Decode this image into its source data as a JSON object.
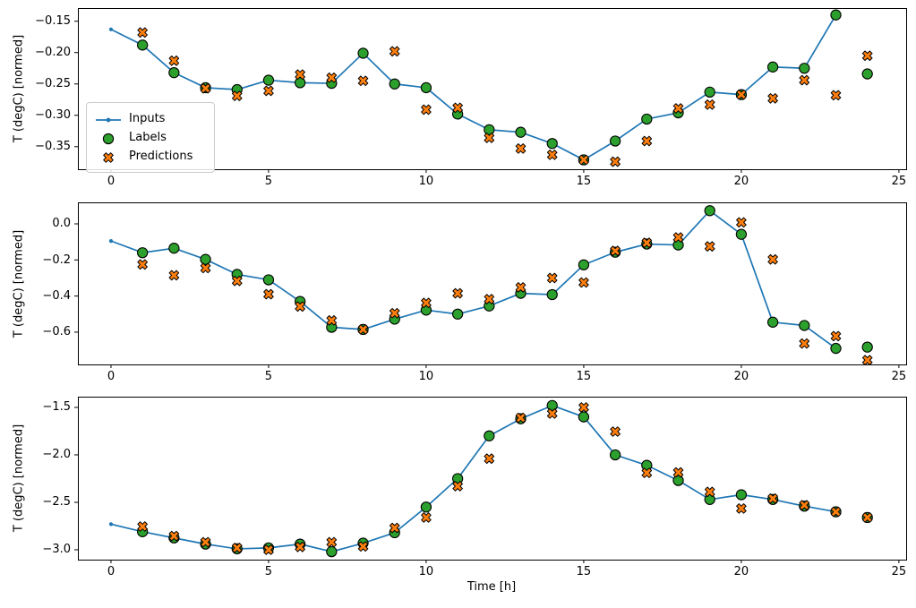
{
  "figure": {
    "xlabel": "Time [h]",
    "colors": {
      "inputs": "#1f77b4",
      "labels": "#2ca02c",
      "predictions": "#ff7f0e",
      "marker_edge": "#000000",
      "legend_border": "#cccccc"
    },
    "legend": {
      "items": [
        {
          "label": "Inputs",
          "marker": "line-dot"
        },
        {
          "label": "Labels",
          "marker": "circle"
        },
        {
          "label": "Predictions",
          "marker": "X"
        }
      ]
    }
  },
  "chart_data": [
    {
      "type": "line_scatter",
      "title": "",
      "ylabel": "T (degC) [normed]",
      "xlim": [
        -1.05,
        25.23
      ],
      "ylim": [
        -0.386,
        -0.129
      ],
      "grid": false,
      "xticks": {
        "values": [
          0,
          5,
          10,
          15,
          20,
          25
        ],
        "labels": [
          "0",
          "5",
          "10",
          "15",
          "20",
          "25"
        ]
      },
      "yticks": {
        "values": [
          -0.15,
          -0.2,
          -0.25,
          -0.3,
          -0.35
        ],
        "labels": [
          "−0.15",
          "−0.20",
          "−0.25",
          "−0.30",
          "−0.35"
        ]
      },
      "series": [
        {
          "name": "Inputs",
          "kind": "line",
          "marker": "dot",
          "color": "#1f77b4",
          "x": [
            0,
            1,
            2,
            3,
            4,
            5,
            6,
            7,
            8,
            9,
            10,
            11,
            12,
            13,
            14,
            15,
            16,
            17,
            18,
            19,
            20,
            21,
            22,
            23
          ],
          "y": [
            -0.163,
            -0.188,
            -0.232,
            -0.256,
            -0.259,
            -0.244,
            -0.248,
            -0.249,
            -0.201,
            -0.25,
            -0.256,
            -0.298,
            -0.323,
            -0.327,
            -0.345,
            -0.371,
            -0.341,
            -0.306,
            -0.296,
            -0.263,
            -0.267,
            -0.223,
            -0.225,
            -0.14
          ]
        },
        {
          "name": "Labels",
          "kind": "scatter",
          "marker": "circle",
          "color": "#2ca02c",
          "x": [
            1,
            2,
            3,
            4,
            5,
            6,
            7,
            8,
            9,
            10,
            11,
            12,
            13,
            14,
            15,
            16,
            17,
            18,
            19,
            20,
            21,
            22,
            23,
            24
          ],
          "y": [
            -0.188,
            -0.232,
            -0.256,
            -0.259,
            -0.244,
            -0.248,
            -0.249,
            -0.201,
            -0.25,
            -0.256,
            -0.298,
            -0.323,
            -0.327,
            -0.345,
            -0.371,
            -0.341,
            -0.306,
            -0.296,
            -0.263,
            -0.267,
            -0.223,
            -0.225,
            -0.14,
            -0.234
          ]
        },
        {
          "name": "Predictions",
          "kind": "scatter",
          "marker": "X",
          "color": "#ff7f0e",
          "x": [
            1,
            2,
            3,
            4,
            5,
            6,
            7,
            8,
            9,
            10,
            11,
            12,
            13,
            14,
            15,
            16,
            17,
            18,
            19,
            20,
            21,
            22,
            23,
            24
          ],
          "y": [
            -0.168,
            -0.213,
            -0.257,
            -0.269,
            -0.261,
            -0.235,
            -0.24,
            -0.245,
            -0.198,
            -0.291,
            -0.288,
            -0.336,
            -0.353,
            -0.363,
            -0.371,
            -0.374,
            -0.341,
            -0.289,
            -0.283,
            -0.267,
            -0.273,
            -0.244,
            -0.268,
            -0.205
          ]
        }
      ]
    },
    {
      "type": "line_scatter",
      "title": "",
      "ylabel": "T (degC) [normed]",
      "xlim": [
        -1.05,
        25.23
      ],
      "ylim": [
        -0.779,
        0.119
      ],
      "grid": false,
      "xticks": {
        "values": [
          0,
          5,
          10,
          15,
          20,
          25
        ],
        "labels": [
          "0",
          "5",
          "10",
          "15",
          "20",
          "25"
        ]
      },
      "yticks": {
        "values": [
          0.0,
          -0.2,
          -0.4,
          -0.6
        ],
        "labels": [
          "0.0",
          "−0.2",
          "−0.4",
          "−0.6"
        ]
      },
      "series": [
        {
          "name": "Inputs",
          "kind": "line",
          "marker": "dot",
          "color": "#1f77b4",
          "x": [
            0,
            1,
            2,
            3,
            4,
            5,
            6,
            7,
            8,
            9,
            10,
            11,
            12,
            13,
            14,
            15,
            16,
            17,
            18,
            19,
            20,
            21,
            22,
            23
          ],
          "y": [
            -0.095,
            -0.16,
            -0.135,
            -0.197,
            -0.28,
            -0.31,
            -0.43,
            -0.573,
            -0.585,
            -0.528,
            -0.478,
            -0.5,
            -0.455,
            -0.385,
            -0.392,
            -0.227,
            -0.157,
            -0.112,
            -0.117,
            0.073,
            -0.058,
            -0.545,
            -0.563,
            -0.69
          ]
        },
        {
          "name": "Labels",
          "kind": "scatter",
          "marker": "circle",
          "color": "#2ca02c",
          "x": [
            1,
            2,
            3,
            4,
            5,
            6,
            7,
            8,
            9,
            10,
            11,
            12,
            13,
            14,
            15,
            16,
            17,
            18,
            19,
            20,
            21,
            22,
            23,
            24
          ],
          "y": [
            -0.16,
            -0.135,
            -0.197,
            -0.28,
            -0.31,
            -0.43,
            -0.573,
            -0.585,
            -0.528,
            -0.478,
            -0.5,
            -0.455,
            -0.385,
            -0.392,
            -0.227,
            -0.157,
            -0.112,
            -0.117,
            0.073,
            -0.058,
            -0.545,
            -0.563,
            -0.69,
            -0.683
          ]
        },
        {
          "name": "Predictions",
          "kind": "scatter",
          "marker": "X",
          "color": "#ff7f0e",
          "x": [
            1,
            2,
            3,
            4,
            5,
            6,
            7,
            8,
            9,
            10,
            11,
            12,
            13,
            14,
            15,
            16,
            17,
            18,
            19,
            20,
            21,
            22,
            23,
            24
          ],
          "y": [
            -0.225,
            -0.285,
            -0.245,
            -0.316,
            -0.39,
            -0.458,
            -0.535,
            -0.585,
            -0.495,
            -0.438,
            -0.385,
            -0.417,
            -0.352,
            -0.3,
            -0.325,
            -0.15,
            -0.105,
            -0.075,
            -0.125,
            0.008,
            -0.197,
            -0.663,
            -0.622,
            -0.755
          ]
        }
      ]
    },
    {
      "type": "line_scatter",
      "title": "",
      "ylabel": "T (degC) [normed]",
      "xlabel": "Time [h]",
      "xlim": [
        -1.05,
        25.23
      ],
      "ylim": [
        -3.104,
        -1.387
      ],
      "grid": false,
      "xticks": {
        "values": [
          0,
          5,
          10,
          15,
          20,
          25
        ],
        "labels": [
          "0",
          "5",
          "10",
          "15",
          "20",
          "25"
        ]
      },
      "yticks": {
        "values": [
          -1.5,
          -2.0,
          -2.5,
          -3.0
        ],
        "labels": [
          "−1.5",
          "−2.0",
          "−2.5",
          "−3.0"
        ]
      },
      "series": [
        {
          "name": "Inputs",
          "kind": "line",
          "marker": "dot",
          "color": "#1f77b4",
          "x": [
            0,
            1,
            2,
            3,
            4,
            5,
            6,
            7,
            8,
            9,
            10,
            11,
            12,
            13,
            14,
            15,
            16,
            17,
            18,
            19,
            20,
            21,
            22,
            23
          ],
          "y": [
            -2.73,
            -2.81,
            -2.875,
            -2.94,
            -2.99,
            -2.98,
            -2.94,
            -3.02,
            -2.93,
            -2.82,
            -2.55,
            -2.25,
            -1.8,
            -1.62,
            -1.48,
            -1.6,
            -2.0,
            -2.11,
            -2.27,
            -2.47,
            -2.42,
            -2.47,
            -2.54,
            -2.6
          ]
        },
        {
          "name": "Labels",
          "kind": "scatter",
          "marker": "circle",
          "color": "#2ca02c",
          "x": [
            1,
            2,
            3,
            4,
            5,
            6,
            7,
            8,
            9,
            10,
            11,
            12,
            13,
            14,
            15,
            16,
            17,
            18,
            19,
            20,
            21,
            22,
            23,
            24
          ],
          "y": [
            -2.81,
            -2.875,
            -2.94,
            -2.99,
            -2.98,
            -2.94,
            -3.02,
            -2.93,
            -2.82,
            -2.55,
            -2.25,
            -1.8,
            -1.62,
            -1.48,
            -1.6,
            -2.0,
            -2.11,
            -2.27,
            -2.47,
            -2.42,
            -2.47,
            -2.54,
            -2.6,
            -2.66
          ]
        },
        {
          "name": "Predictions",
          "kind": "scatter",
          "marker": "X",
          "color": "#ff7f0e",
          "x": [
            1,
            2,
            3,
            4,
            5,
            6,
            7,
            8,
            9,
            10,
            11,
            12,
            13,
            14,
            15,
            16,
            17,
            18,
            19,
            20,
            21,
            22,
            23,
            24
          ],
          "y": [
            -2.755,
            -2.855,
            -2.92,
            -2.98,
            -3.0,
            -2.97,
            -2.92,
            -2.965,
            -2.77,
            -2.66,
            -2.33,
            -2.04,
            -1.61,
            -1.565,
            -1.5,
            -1.755,
            -2.19,
            -2.185,
            -2.39,
            -2.565,
            -2.46,
            -2.53,
            -2.6,
            -2.66
          ]
        }
      ]
    }
  ]
}
